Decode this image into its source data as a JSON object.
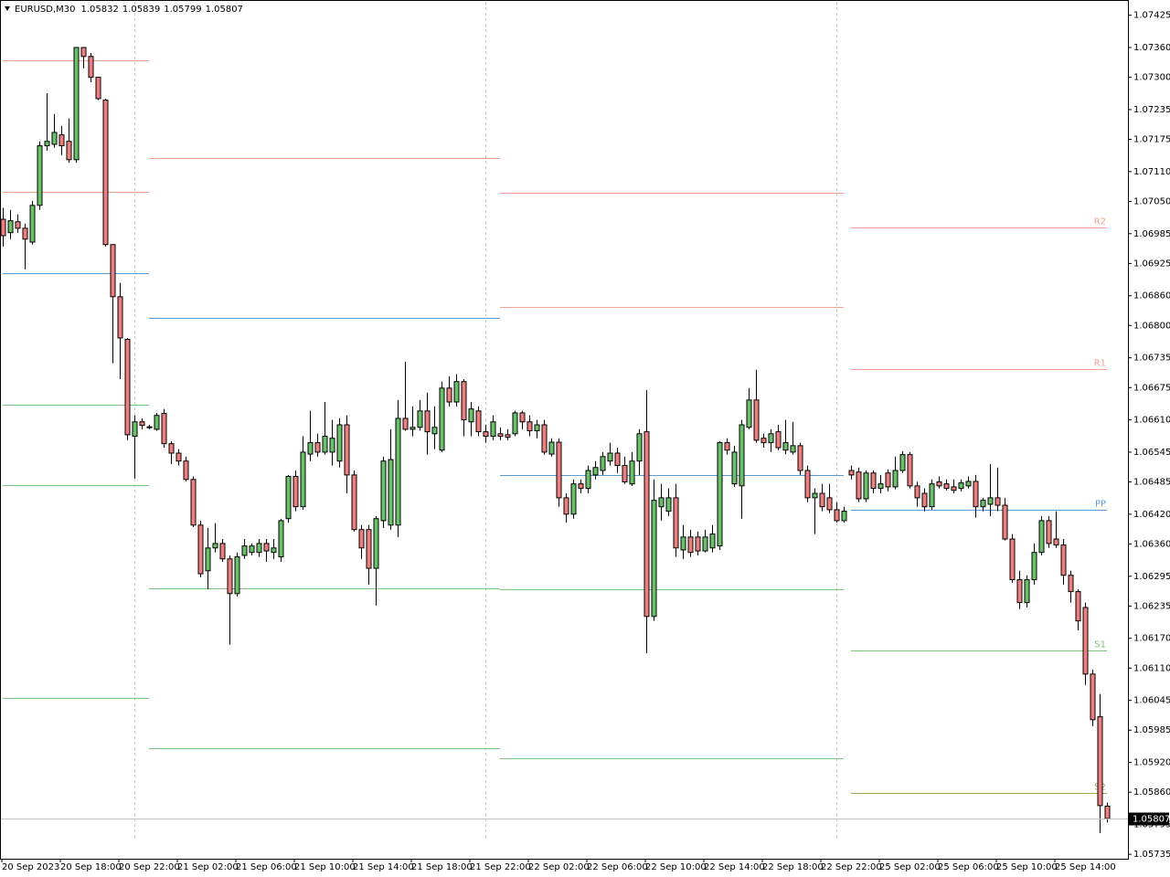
{
  "chart_data": {
    "type": "candlestick",
    "title": "EURUSD,M30",
    "up_color": "#6cc06c",
    "down_color": "#ef8080",
    "ylim": [
      1.05726,
      1.07452
    ],
    "yticks": [
      1.07425,
      {
        "value": 1.0736,
        "label": "1.07360"
      },
      {
        "value": 1.073,
        "label": "1.07300"
      },
      1.07235,
      1.07175,
      {
        "value": 1.0711,
        "label": "1.07110"
      },
      {
        "value": 1.0705,
        "label": "1.07050"
      },
      1.06985,
      1.06925,
      {
        "value": 1.0686,
        "label": "1.06860"
      },
      {
        "value": 1.068,
        "label": "1.06800"
      },
      1.06735,
      1.06675,
      {
        "value": 1.0661,
        "label": "1.06610"
      },
      1.06545,
      1.06485,
      {
        "value": 1.0642,
        "label": "1.06420"
      },
      {
        "value": 1.0636,
        "label": "1.06360"
      },
      1.06295,
      1.06235,
      {
        "value": 1.0617,
        "label": "1.06170"
      },
      {
        "value": 1.0611,
        "label": "1.06110"
      },
      1.06045,
      1.05985,
      {
        "value": 1.0592,
        "label": "1.05920"
      },
      {
        "value": 1.0586,
        "label": "1.05860"
      },
      1.05795,
      1.05735
    ],
    "categories": [
      "20 Sep 2023",
      null,
      null,
      null,
      null,
      null,
      null,
      null,
      "20 Sep 18:00",
      null,
      null,
      null,
      null,
      null,
      null,
      null,
      "20 Sep 22:00",
      null,
      null,
      null,
      null,
      null,
      null,
      null,
      "21 Sep 02:00",
      null,
      null,
      null,
      null,
      null,
      null,
      null,
      "21 Sep 06:00",
      null,
      null,
      null,
      null,
      null,
      null,
      null,
      "21 Sep 10:00",
      null,
      null,
      null,
      null,
      null,
      null,
      null,
      "21 Sep 14:00",
      null,
      null,
      null,
      null,
      null,
      null,
      null,
      "21 Sep 18:00",
      null,
      null,
      null,
      null,
      null,
      null,
      null,
      "21 Sep 22:00",
      null,
      null,
      null,
      null,
      null,
      null,
      null,
      "22 Sep 02:00",
      null,
      null,
      null,
      null,
      null,
      null,
      null,
      "22 Sep 06:00",
      null,
      null,
      null,
      null,
      null,
      null,
      null,
      "22 Sep 10:00",
      null,
      null,
      null,
      null,
      null,
      null,
      null,
      "22 Sep 14:00",
      null,
      null,
      null,
      null,
      null,
      null,
      null,
      "22 Sep 18:00",
      null,
      null,
      null,
      null,
      null,
      null,
      null,
      "22 Sep 22:00",
      null,
      null,
      null,
      null,
      null,
      null,
      null,
      "25 Sep 02:00",
      null,
      null,
      null,
      null,
      null,
      null,
      null,
      "25 Sep 06:00",
      null,
      null,
      null,
      null,
      null,
      null,
      null,
      "25 Sep 10:00",
      null,
      null,
      null,
      null,
      null,
      null,
      null,
      "25 Sep 14:00",
      null,
      null,
      null,
      null,
      null,
      null,
      null
    ],
    "open": [
      1.07014,
      1.06987,
      1.07009,
      1.06996,
      1.06968,
      1.07042,
      1.07162,
      1.07165,
      1.07184,
      1.07171,
      1.07134,
      1.0736,
      1.07342,
      1.073,
      1.07254,
      1.06963,
      1.06858,
      1.06772,
      1.06577,
      1.06606,
      1.06595,
      1.06591,
      1.06623,
      1.06562,
      1.06543,
      1.06527,
      1.0649,
      1.06398,
      1.06306,
      1.06352,
      1.06361,
      1.0633,
      1.0626,
      1.06337,
      1.06343,
      1.06343,
      1.06361,
      1.06343,
      1.06334,
      1.06411,
      1.06496,
      1.06435,
      1.06541,
      1.06564,
      1.06545,
      1.06545,
      1.06527,
      1.066,
      1.06499,
      1.06389,
      1.06389,
      1.06311,
      1.06407,
      1.06398,
      1.06398,
      1.06613,
      1.06591,
      1.06595,
      1.06628,
      1.06582,
      1.06549,
      1.06674,
      1.06646,
      1.06687,
      1.06606,
      1.06628,
      1.06586,
      1.06577,
      1.06582,
      1.0658,
      1.06582,
      1.06624,
      1.06606,
      1.06588,
      1.066,
      1.06541,
      1.06565,
      1.06453,
      1.0642,
      1.06481,
      1.06472,
      1.06499,
      1.06508,
      1.06527,
      1.06543,
      1.06518,
      1.06481,
      1.06527,
      1.06586,
      1.06214,
      1.06435,
      1.06426,
      1.06453,
      1.06348,
      1.06374,
      1.06374,
      1.06346,
      1.06352,
      1.06356,
      1.06564,
      1.06481,
      1.06477,
      1.06595,
      1.0665,
      1.06573,
      1.06564,
      1.06586,
      1.06549,
      1.06545,
      1.06558,
      1.06508,
      1.06453,
      1.06462,
      1.06453,
      1.06429,
      1.06407,
      1.06508,
      1.06505,
      1.06451,
      1.06503,
      1.06472,
      1.06503,
      1.06475,
      1.06508,
      1.0654,
      1.06477,
      1.06462,
      1.06435,
      1.06485,
      1.06481,
      1.06475,
      1.06472,
      1.06477,
      1.06486,
      1.06435,
      1.0644,
      1.06453,
      1.06438,
      1.0637,
      1.06288,
      1.06242,
      1.06288,
      1.06343,
      1.06407,
      1.0637,
      1.06358,
      1.06297,
      1.06264,
      1.06232,
      1.06098,
      1.06012,
      1.05832
    ],
    "high": [
      1.07037,
      1.07033,
      1.07024,
      1.07005,
      1.07051,
      1.07171,
      1.07268,
      1.07226,
      1.07202,
      1.07217,
      1.0736,
      1.0736,
      1.07349,
      1.073,
      1.07257,
      1.06963,
      1.06886,
      1.06775,
      1.06619,
      1.06613,
      1.066,
      1.06624,
      1.06632,
      1.06567,
      1.06551,
      1.06536,
      1.06496,
      1.06407,
      1.06392,
      1.06402,
      1.0637,
      1.06337,
      1.06343,
      1.0637,
      1.06361,
      1.0637,
      1.0637,
      1.0637,
      1.06411,
      1.06499,
      1.06508,
      1.06577,
      1.06628,
      1.06582,
      1.06646,
      1.0661,
      1.06613,
      1.06619,
      1.06508,
      1.06398,
      1.06398,
      1.06416,
      1.06536,
      1.06591,
      1.0665,
      1.06727,
      1.06637,
      1.0665,
      1.06665,
      1.06637,
      1.06687,
      1.06698,
      1.06702,
      1.06692,
      1.06646,
      1.06637,
      1.066,
      1.06619,
      1.06595,
      1.06591,
      1.06628,
      1.06628,
      1.06619,
      1.0661,
      1.0661,
      1.06573,
      1.06573,
      1.06462,
      1.0649,
      1.0649,
      1.06518,
      1.06527,
      1.06545,
      1.06564,
      1.06554,
      1.06536,
      1.06545,
      1.06591,
      1.0667,
      1.0649,
      1.06481,
      1.06472,
      1.06481,
      1.06398,
      1.06389,
      1.06385,
      1.06389,
      1.06398,
      1.06567,
      1.06573,
      1.06558,
      1.0661,
      1.06674,
      1.06711,
      1.06582,
      1.06591,
      1.066,
      1.0661,
      1.06606,
      1.06564,
      1.06518,
      1.06472,
      1.06481,
      1.06481,
      1.06444,
      1.06435,
      1.06518,
      1.06514,
      1.06508,
      1.06508,
      1.06499,
      1.0651,
      1.06536,
      1.06547,
      1.06545,
      1.06485,
      1.06472,
      1.0649,
      1.06496,
      1.0649,
      1.0649,
      1.0649,
      1.06496,
      1.06499,
      1.06453,
      1.06521,
      1.06514,
      1.06453,
      1.0638,
      1.06306,
      1.06297,
      1.06361,
      1.06416,
      1.06416,
      1.06426,
      1.0637,
      1.06306,
      1.06269,
      1.06242,
      1.06107,
      1.06058,
      1.05839
    ],
    "low": [
      1.06959,
      1.06974,
      1.06987,
      1.06913,
      1.06963,
      1.07033,
      1.07152,
      1.07158,
      1.07143,
      1.07128,
      1.07128,
      1.07318,
      1.0729,
      1.07254,
      1.06959,
      1.06724,
      1.06692,
      1.06569,
      1.06492,
      1.06591,
      1.06591,
      1.06588,
      1.06554,
      1.06521,
      1.06518,
      1.06486,
      1.06394,
      1.06293,
      1.06269,
      1.06343,
      1.06324,
      1.06157,
      1.06254,
      1.0633,
      1.06337,
      1.06334,
      1.06324,
      1.0633,
      1.06324,
      1.06403,
      1.06426,
      1.06429,
      1.06527,
      1.06536,
      1.0654,
      1.06518,
      1.06514,
      1.06462,
      1.06385,
      1.0633,
      1.06278,
      1.06236,
      1.06392,
      1.06389,
      1.06374,
      1.06588,
      1.06577,
      1.06588,
      1.0654,
      1.06551,
      1.06545,
      1.06637,
      1.06637,
      1.06577,
      1.06577,
      1.06577,
      1.06564,
      1.06569,
      1.06569,
      1.06569,
      1.06577,
      1.06591,
      1.06577,
      1.06573,
      1.0654,
      1.06536,
      1.06435,
      1.06403,
      1.06411,
      1.06462,
      1.06462,
      1.0649,
      1.06499,
      1.06518,
      1.06503,
      1.06481,
      1.06477,
      1.06499,
      1.0614,
      1.06205,
      1.06407,
      1.06416,
      1.06334,
      1.0633,
      1.06334,
      1.06337,
      1.06343,
      1.06343,
      1.06348,
      1.0654,
      1.06475,
      1.06411,
      1.06591,
      1.06564,
      1.06554,
      1.06545,
      1.06549,
      1.06541,
      1.0654,
      1.06499,
      1.06444,
      1.0638,
      1.06426,
      1.06422,
      1.06403,
      1.06403,
      1.0649,
      1.06444,
      1.06444,
      1.06462,
      1.06462,
      1.06466,
      1.0647,
      1.06503,
      1.06472,
      1.06435,
      1.06426,
      1.06429,
      1.06472,
      1.06468,
      1.06462,
      1.06466,
      1.06472,
      1.06413,
      1.06426,
      1.06416,
      1.06426,
      1.06367,
      1.06282,
      1.06229,
      1.06232,
      1.06278,
      1.06337,
      1.06352,
      1.06352,
      1.06278,
      1.06242,
      1.06186,
      1.06076,
      1.05993,
      1.05778,
      1.05799
    ],
    "close": [
      1.06981,
      1.07011,
      1.06996,
      1.06974,
      1.07042,
      1.07162,
      1.07171,
      1.07189,
      1.07162,
      1.07134,
      1.0736,
      1.07342,
      1.073,
      1.07257,
      1.06963,
      1.06858,
      1.06775,
      1.0658,
      1.06606,
      1.06599,
      1.06596,
      1.06619,
      1.06562,
      1.06543,
      1.06527,
      1.0649,
      1.06398,
      1.063,
      1.06352,
      1.06361,
      1.0633,
      1.0626,
      1.06334,
      1.06356,
      1.06356,
      1.06361,
      1.06346,
      1.06352,
      1.06407,
      1.06496,
      1.06435,
      1.06545,
      1.06564,
      1.06545,
      1.06577,
      1.06573,
      1.066,
      1.06499,
      1.06389,
      1.06352,
      1.06311,
      1.06411,
      1.06527,
      1.0653,
      1.06613,
      1.06591,
      1.06595,
      1.06628,
      1.06586,
      1.06595,
      1.06674,
      1.06646,
      1.06687,
      1.0661,
      1.06632,
      1.06586,
      1.06577,
      1.06606,
      1.06577,
      1.06575,
      1.06624,
      1.06606,
      1.06588,
      1.066,
      1.06545,
      1.06565,
      1.06453,
      1.0642,
      1.06481,
      1.06472,
      1.06508,
      1.06514,
      1.06536,
      1.06543,
      1.06518,
      1.06485,
      1.06527,
      1.06582,
      1.06214,
      1.06448,
      1.06453,
      1.06453,
      1.06352,
      1.06374,
      1.06343,
      1.06346,
      1.06374,
      1.0638,
      1.06564,
      1.06549,
      1.06545,
      1.066,
      1.0665,
      1.06569,
      1.06564,
      1.06582,
      1.06554,
      1.06564,
      1.06558,
      1.06508,
      1.06453,
      1.06462,
      1.06435,
      1.06429,
      1.06407,
      1.06426,
      1.06499,
      1.06451,
      1.06503,
      1.06472,
      1.06481,
      1.06475,
      1.06508,
      1.0654,
      1.06477,
      1.06453,
      1.06435,
      1.06481,
      1.06477,
      1.06472,
      1.06468,
      1.06483,
      1.06486,
      1.06435,
      1.06448,
      1.06453,
      1.06438,
      1.0637,
      1.06288,
      1.06242,
      1.06288,
      1.06343,
      1.06407,
      1.06361,
      1.06358,
      1.06297,
      1.06264,
      1.06205,
      1.06098,
      1.06006,
      1.05833,
      1.05807
    ],
    "pivots": [
      {
        "start": 0,
        "end": 20,
        "levels": [
          {
            "value": 1.07335,
            "color": "#f2a092"
          },
          {
            "value": 1.0707,
            "color": "#f2a092"
          },
          {
            "value": 1.06906,
            "color": "#5b9bd5"
          },
          {
            "value": 1.0664,
            "color": "#7cc47c"
          },
          {
            "value": 1.06478,
            "color": "#7cc47c"
          },
          {
            "value": 1.06049,
            "color": "#7cc47c"
          }
        ]
      },
      {
        "start": 20,
        "end": 68,
        "levels": [
          {
            "value": 1.07138,
            "color": "#f2a092"
          },
          {
            "value": 1.06816,
            "color": "#5b9bd5"
          },
          {
            "value": 1.0627,
            "color": "#7cc47c"
          },
          {
            "value": 1.05948,
            "color": "#7cc47c"
          }
        ]
      },
      {
        "start": 68,
        "end": 115,
        "levels": [
          {
            "value": 1.07068,
            "color": "#f2a092"
          },
          {
            "value": 1.06838,
            "color": "#f2a092"
          },
          {
            "value": 1.06498,
            "color": "#5b9bd5"
          },
          {
            "value": 1.06268,
            "color": "#7cc47c"
          },
          {
            "value": 1.05928,
            "color": "#7cc47c"
          }
        ]
      },
      {
        "start": 116,
        "end": 151,
        "levels": [
          {
            "label": "R2",
            "value": 1.06997,
            "color": "#f2a092"
          },
          {
            "label": "R1",
            "value": 1.06713,
            "color": "#f2a092"
          },
          {
            "label": "PP",
            "value": 1.06428,
            "color": "#5b9bd5"
          },
          {
            "label": "S1",
            "value": 1.06145,
            "color": "#7cc47c"
          },
          {
            "label": "S2",
            "value": 1.05858,
            "color": "#9aa860"
          }
        ]
      }
    ]
  }
}
